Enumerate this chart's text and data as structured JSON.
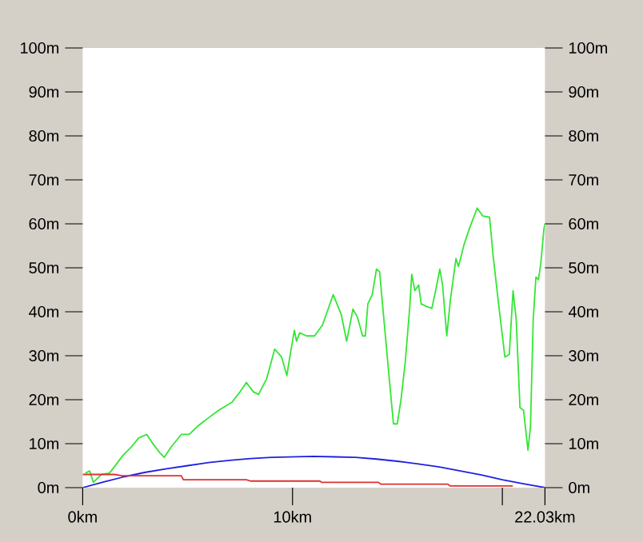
{
  "chart_data": {
    "type": "line",
    "xlim": [
      0,
      22.03
    ],
    "ylim": [
      0,
      100
    ],
    "y2lim": [
      0,
      100
    ],
    "xticks": [
      {
        "value": 0,
        "label": "0km"
      },
      {
        "value": 10,
        "label": "10km"
      },
      {
        "value": 20,
        "label": null
      },
      {
        "value": 22.03,
        "label": "22.03km"
      }
    ],
    "yticks": [
      {
        "value": 0,
        "label": "0m"
      },
      {
        "value": 10,
        "label": "10m"
      },
      {
        "value": 20,
        "label": "20m"
      },
      {
        "value": 30,
        "label": "30m"
      },
      {
        "value": 40,
        "label": "40m"
      },
      {
        "value": 50,
        "label": "50m"
      },
      {
        "value": 60,
        "label": "60m"
      },
      {
        "value": 70,
        "label": "70m"
      },
      {
        "value": 80,
        "label": "80m"
      },
      {
        "value": 90,
        "label": "90m"
      },
      {
        "value": 100,
        "label": "100m"
      }
    ],
    "y2ticks": [
      {
        "value": 0,
        "label": "0m"
      },
      {
        "value": 10,
        "label": "10m"
      },
      {
        "value": 20,
        "label": "20m"
      },
      {
        "value": 30,
        "label": "30m"
      },
      {
        "value": 40,
        "label": "40m"
      },
      {
        "value": 50,
        "label": "50m"
      },
      {
        "value": 60,
        "label": "60m"
      },
      {
        "value": 70,
        "label": "70m"
      },
      {
        "value": 80,
        "label": "80m"
      },
      {
        "value": 90,
        "label": "90m"
      },
      {
        "value": 100,
        "label": "100m"
      }
    ],
    "grid": false,
    "marker": "none",
    "line_style": "solid",
    "series": [
      {
        "color": "#33e633",
        "x": [
          0.13,
          0.33,
          0.51,
          0.89,
          1.27,
          1.52,
          1.91,
          2.29,
          2.67,
          3.05,
          3.3,
          3.68,
          3.89,
          4.19,
          4.7,
          5.08,
          5.46,
          5.97,
          6.48,
          7.11,
          7.5,
          7.8,
          8.13,
          8.38,
          8.77,
          9.15,
          9.48,
          9.73,
          9.91,
          10.09,
          10.19,
          10.34,
          10.67,
          11.05,
          11.43,
          11.94,
          12.32,
          12.58,
          12.88,
          13.09,
          13.34,
          13.47,
          13.59,
          13.8,
          14.0,
          14.15,
          14.31,
          14.61,
          14.81,
          14.99,
          15.17,
          15.37,
          15.58,
          15.68,
          15.83,
          16.01,
          16.13,
          16.39,
          16.64,
          16.85,
          17.02,
          17.15,
          17.35,
          17.53,
          17.79,
          17.91,
          18.17,
          18.42,
          18.8,
          19.06,
          19.39,
          19.56,
          19.82,
          20.12,
          20.33,
          20.51,
          20.66,
          20.84,
          21.01,
          21.22,
          21.34,
          21.47,
          21.6,
          21.72,
          21.83,
          21.98,
          22.03
        ],
        "values": [
          3.3,
          3.8,
          1.2,
          3.0,
          3.3,
          4.8,
          7.3,
          9.1,
          11.3,
          12.1,
          10.3,
          7.9,
          6.9,
          9.1,
          12.1,
          12.1,
          13.9,
          15.8,
          17.6,
          19.4,
          21.8,
          23.9,
          21.8,
          21.2,
          24.8,
          31.5,
          29.7,
          25.5,
          30.9,
          35.8,
          33.3,
          35.2,
          34.5,
          34.5,
          37.0,
          43.9,
          39.4,
          33.3,
          40.6,
          38.8,
          34.5,
          34.5,
          41.8,
          43.9,
          49.7,
          49.1,
          40.6,
          24.8,
          14.5,
          14.5,
          20.0,
          28.5,
          40.6,
          48.5,
          44.8,
          46.1,
          41.8,
          41.2,
          40.8,
          45.5,
          49.7,
          46.1,
          34.5,
          43.0,
          52.1,
          50.3,
          55.2,
          58.8,
          63.6,
          61.8,
          61.5,
          52.7,
          41.8,
          29.7,
          30.3,
          44.8,
          38.2,
          18.2,
          17.6,
          8.5,
          13.9,
          38.2,
          47.9,
          47.3,
          50.9,
          58.8,
          60.0
        ]
      },
      {
        "color": "#2020e0",
        "x": [
          0,
          1,
          2,
          3,
          4,
          5,
          6,
          7,
          8,
          9,
          10,
          11,
          12,
          13,
          14,
          15,
          16,
          17,
          18,
          19,
          20,
          21,
          22.03
        ],
        "values": [
          0,
          1.3,
          2.5,
          3.5,
          4.3,
          5.0,
          5.7,
          6.2,
          6.6,
          6.9,
          7.0,
          7.1,
          7.0,
          6.9,
          6.5,
          6.0,
          5.4,
          4.7,
          3.8,
          2.9,
          1.8,
          0.9,
          0
        ]
      },
      {
        "color": "#e03030",
        "x": [
          0,
          1.5,
          1.9,
          4.7,
          4.8,
          7.8,
          8,
          11.3,
          11.4,
          14.1,
          14.2,
          17.4,
          17.5,
          20.5
        ],
        "values": [
          3.0,
          3.0,
          2.7,
          2.7,
          1.8,
          1.8,
          1.5,
          1.5,
          1.2,
          1.2,
          0.8,
          0.8,
          0.4,
          0.4
        ]
      }
    ]
  }
}
